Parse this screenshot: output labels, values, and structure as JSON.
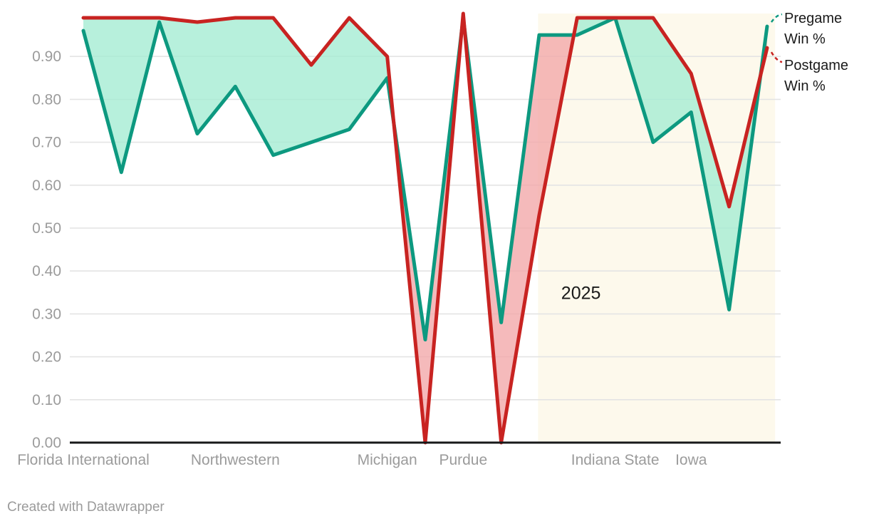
{
  "footer": {
    "attribution": "Created with Datawrapper"
  },
  "chart_data": {
    "type": "line",
    "title": "",
    "xlabel": "",
    "ylabel": "",
    "x_unit": "game (opponent)",
    "n_points": 19,
    "ylim": [
      0,
      1.0
    ],
    "grid": true,
    "legend_position": "top-right",
    "y_tick_labels": [
      "0.00",
      "0.10",
      "0.20",
      "0.30",
      "0.40",
      "0.50",
      "0.60",
      "0.70",
      "0.80",
      "0.90"
    ],
    "x_tick_labels": [
      {
        "index": 0,
        "label": "Florida International"
      },
      {
        "index": 4,
        "label": "Northwestern"
      },
      {
        "index": 8,
        "label": "Michigan"
      },
      {
        "index": 10,
        "label": "Purdue"
      },
      {
        "index": 14,
        "label": "Indiana State"
      },
      {
        "index": 16,
        "label": "Iowa"
      }
    ],
    "series": [
      {
        "name": "Pregame Win %",
        "color": "#0d9980",
        "values": [
          0.96,
          0.63,
          0.98,
          0.72,
          0.83,
          0.67,
          0.7,
          0.73,
          0.85,
          0.24,
          0.99,
          0.28,
          0.95,
          0.95,
          0.99,
          0.7,
          0.77,
          0.31,
          0.97
        ]
      },
      {
        "name": "Postgame Win %",
        "color": "#c82321",
        "values": [
          0.99,
          0.99,
          0.99,
          0.98,
          0.99,
          0.99,
          0.88,
          0.99,
          0.9,
          0.0,
          1.0,
          0.0,
          0.53,
          0.99,
          0.99,
          0.99,
          0.86,
          0.55,
          0.92
        ]
      }
    ],
    "fill_between": {
      "color_when_pregame_lower": "#a3ecd2",
      "color_when_postgame_lower": "#f2a6a8",
      "opacity": 0.78
    },
    "highlight_band": {
      "label": "2025",
      "from_index": 11.97,
      "to_index": 18.21,
      "color": "#fdf9ec",
      "label_x_index": 13.1,
      "label_y_value": 0.335
    },
    "colors": {
      "gridline": "#e4e4e4",
      "axis_line": "#18191a",
      "tick_text": "#9b9b9b",
      "annotation_text": "#1a1a1a"
    }
  }
}
